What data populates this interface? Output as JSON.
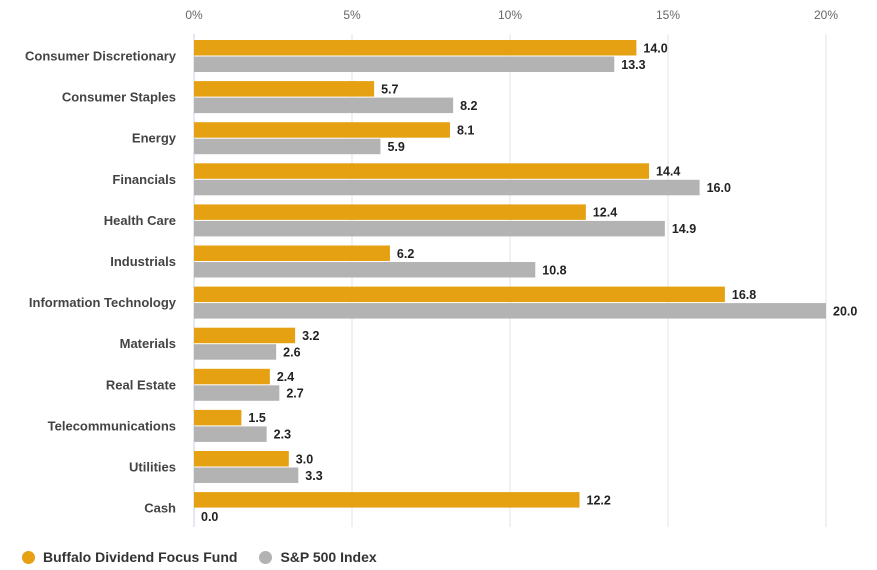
{
  "chart_data": {
    "type": "bar",
    "orientation": "horizontal",
    "title": "",
    "xlabel": "",
    "ylabel": "",
    "xlim": [
      0,
      20
    ],
    "x_ticks": [
      0,
      5,
      10,
      15,
      20
    ],
    "x_tick_labels": [
      "0%",
      "5%",
      "10%",
      "15%",
      "20%"
    ],
    "grid": true,
    "legend_position": "bottom-left",
    "categories": [
      "Consumer Discretionary",
      "Consumer Staples",
      "Energy",
      "Financials",
      "Health Care",
      "Industrials",
      "Information Technology",
      "Materials",
      "Real Estate",
      "Telecommunications",
      "Utilities",
      "Cash"
    ],
    "series": [
      {
        "name": "Buffalo Dividend Focus Fund",
        "color": "#E5A112",
        "values": [
          14.0,
          5.7,
          8.1,
          14.4,
          12.4,
          6.2,
          16.8,
          3.2,
          2.4,
          1.5,
          3.0,
          12.2
        ],
        "labels": [
          "14.0",
          "5.7",
          "8.1",
          "14.4",
          "12.4",
          "6.2",
          "16.8",
          "3.2",
          "2.4",
          "1.5",
          "3.0",
          "12.2"
        ]
      },
      {
        "name": "S&P 500 Index",
        "color": "#B3B3B3",
        "values": [
          13.3,
          8.2,
          5.9,
          16.0,
          14.9,
          10.8,
          20.0,
          2.6,
          2.7,
          2.3,
          3.3,
          0.0
        ],
        "labels": [
          "13.3",
          "8.2",
          "5.9",
          "16.0",
          "14.9",
          "10.8",
          "20.0",
          "2.6",
          "2.7",
          "2.3",
          "3.3",
          "0.0"
        ]
      }
    ]
  }
}
